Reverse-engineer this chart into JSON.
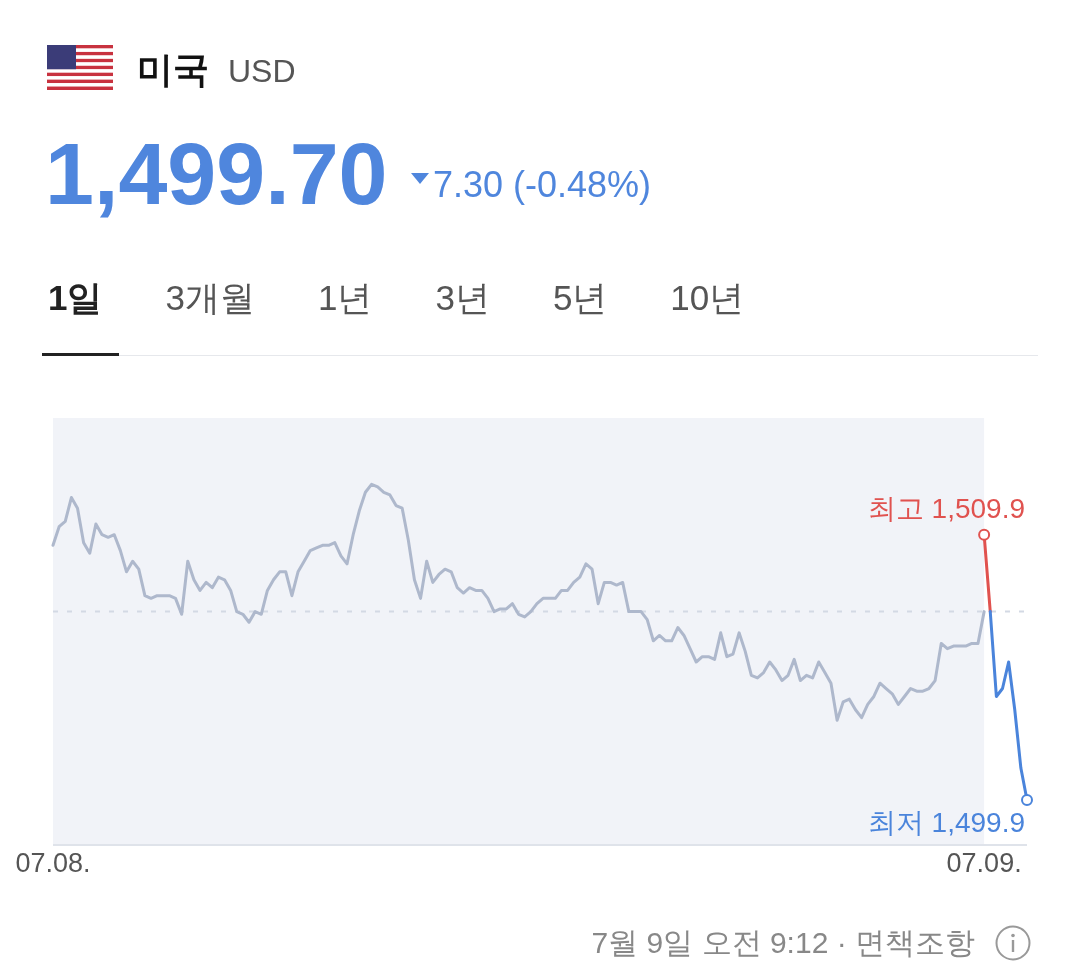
{
  "chart_data": {
    "type": "line",
    "title": "미국",
    "subtitle": "USD",
    "categories": [
      "07.08.",
      null,
      null,
      null,
      null,
      null,
      null,
      null,
      null,
      null,
      null,
      null,
      null,
      null,
      null,
      null,
      null,
      null,
      null,
      null,
      null,
      null,
      null,
      null,
      null,
      null,
      null,
      null,
      null,
      null,
      null,
      null,
      null,
      null,
      null,
      null,
      null,
      null,
      null,
      null,
      null,
      null,
      null,
      null,
      null,
      null,
      null,
      null,
      null,
      null,
      null,
      null,
      null,
      null,
      null,
      null,
      null,
      null,
      null,
      null,
      null,
      null,
      null,
      null,
      null,
      null,
      null,
      null,
      null,
      null,
      null,
      null,
      null,
      null,
      null,
      null,
      null,
      null,
      null,
      null,
      null,
      null,
      null,
      null,
      null,
      null,
      null,
      null,
      null,
      null,
      null,
      null,
      null,
      null,
      null,
      null,
      null,
      null,
      null,
      null,
      null,
      null,
      null,
      null,
      null,
      null,
      null,
      null,
      null,
      null,
      null,
      null,
      null,
      null,
      null,
      null,
      null,
      null,
      null,
      null,
      null,
      null,
      null,
      null,
      null,
      null,
      null,
      null,
      null,
      null,
      null,
      null,
      null,
      null,
      null,
      null,
      null,
      null,
      null,
      null,
      null,
      null,
      null,
      null,
      null,
      null,
      null,
      null,
      null,
      null,
      null,
      null,
      "07.09.",
      null,
      null,
      null,
      null,
      null,
      null,
      null
    ],
    "series": [
      {
        "color": "#aeb8cc",
        "values": [
          1509.5,
          1510.2,
          1510.4,
          1511.3,
          1510.9,
          1509.6,
          1509.2,
          1510.3,
          1509.9,
          1509.8,
          1509.9,
          1509.3,
          1508.5,
          1508.9,
          1508.6,
          1507.6,
          1507.5,
          1507.6,
          1507.6,
          1507.6,
          1507.5,
          1506.9,
          1508.9,
          1508.2,
          1507.8,
          1508.1,
          1507.9,
          1508.3,
          1508.2,
          1507.8,
          1507.0,
          1506.9,
          1506.6,
          1507.0,
          1506.9,
          1507.8,
          1508.2,
          1508.5,
          1508.5,
          1507.6,
          1508.5,
          1508.9,
          1509.3,
          1509.4,
          1509.5,
          1509.5,
          1509.6,
          1509.1,
          1508.8,
          1509.9,
          1510.8,
          1511.5,
          1511.8,
          1511.7,
          1511.5,
          1511.4,
          1511.0,
          1510.9,
          1509.7,
          1508.2,
          1507.5,
          1508.9,
          1508.1,
          1508.4,
          1508.6,
          1508.5,
          1507.9,
          1507.7,
          1507.9,
          1507.8,
          1507.8,
          1507.5,
          1507.0,
          1507.1,
          1507.1,
          1507.3,
          1506.9,
          1506.8,
          1507.0,
          1507.3,
          1507.5,
          1507.5,
          1507.5,
          1507.8,
          1507.8,
          1508.1,
          1508.3,
          1508.8,
          1508.6,
          1507.3,
          1508.1,
          1508.1,
          1508.0,
          1508.1,
          1507.0,
          1507.0,
          1507.0,
          1506.7,
          1505.9,
          1506.1,
          1505.9,
          1505.9,
          1506.4,
          1506.1,
          1505.6,
          1505.1,
          1505.3,
          1505.3,
          1505.2,
          1506.2,
          1505.3,
          1505.4,
          1506.2,
          1505.5,
          1504.6,
          1504.5,
          1504.7,
          1505.1,
          1504.8,
          1504.4,
          1504.6,
          1505.2,
          1504.4,
          1504.6,
          1504.5,
          1505.1,
          1504.7,
          1504.3,
          1502.9,
          1503.6,
          1503.7,
          1503.3,
          1503.0,
          1503.5,
          1503.8,
          1504.3,
          1504.1,
          1503.9,
          1503.5,
          1503.8,
          1504.1,
          1504.0,
          1504.0,
          1504.1,
          1504.4,
          1505.8,
          1505.6,
          1505.7,
          1505.7,
          1505.7,
          1505.8,
          1505.8,
          1507.0,
          null,
          null,
          null,
          null,
          null,
          null,
          null
        ]
      },
      {
        "color": "#e0524f",
        "values": [
          null,
          null,
          null,
          null,
          null,
          null,
          null,
          null,
          null,
          null,
          null,
          null,
          null,
          null,
          null,
          null,
          null,
          null,
          null,
          null,
          null,
          null,
          null,
          null,
          null,
          null,
          null,
          null,
          null,
          null,
          null,
          null,
          null,
          null,
          null,
          null,
          null,
          null,
          null,
          null,
          null,
          null,
          null,
          null,
          null,
          null,
          null,
          null,
          null,
          null,
          null,
          null,
          null,
          null,
          null,
          null,
          null,
          null,
          null,
          null,
          null,
          null,
          null,
          null,
          null,
          null,
          null,
          null,
          null,
          null,
          null,
          null,
          null,
          null,
          null,
          null,
          null,
          null,
          null,
          null,
          null,
          null,
          null,
          null,
          null,
          null,
          null,
          null,
          null,
          null,
          null,
          null,
          null,
          null,
          null,
          null,
          null,
          null,
          null,
          null,
          null,
          null,
          null,
          null,
          null,
          null,
          null,
          null,
          null,
          null,
          null,
          null,
          null,
          null,
          null,
          null,
          null,
          null,
          null,
          null,
          null,
          null,
          null,
          null,
          null,
          null,
          null,
          null,
          null,
          null,
          null,
          null,
          null,
          null,
          null,
          null,
          null,
          null,
          null,
          null,
          null,
          null,
          null,
          null,
          null,
          null,
          null,
          null,
          null,
          null,
          null,
          null,
          1509.9,
          1507.0,
          null,
          null,
          null,
          null,
          null,
          null
        ],
        "value_labels": [
          null,
          null,
          null,
          null,
          null,
          null,
          null,
          null,
          null,
          null,
          null,
          null,
          null,
          null,
          null,
          null,
          null,
          null,
          null,
          null,
          null,
          null,
          null,
          null,
          null,
          null,
          null,
          null,
          null,
          null,
          null,
          null,
          null,
          null,
          null,
          null,
          null,
          null,
          null,
          null,
          null,
          null,
          null,
          null,
          null,
          null,
          null,
          null,
          null,
          null,
          null,
          null,
          null,
          null,
          null,
          null,
          null,
          null,
          null,
          null,
          null,
          null,
          null,
          null,
          null,
          null,
          null,
          null,
          null,
          null,
          null,
          null,
          null,
          null,
          null,
          null,
          null,
          null,
          null,
          null,
          null,
          null,
          null,
          null,
          null,
          null,
          null,
          null,
          null,
          null,
          null,
          null,
          null,
          null,
          null,
          null,
          null,
          null,
          null,
          null,
          null,
          null,
          null,
          null,
          null,
          null,
          null,
          null,
          null,
          null,
          null,
          null,
          null,
          null,
          null,
          null,
          null,
          null,
          null,
          null,
          null,
          null,
          null,
          null,
          null,
          null,
          null,
          null,
          null,
          null,
          null,
          null,
          null,
          null,
          null,
          null,
          null,
          null,
          null,
          null,
          null,
          null,
          null,
          null,
          null,
          null,
          null,
          null,
          null,
          null,
          null,
          null,
          "최고 1,509.9",
          null,
          null,
          null,
          null,
          null,
          null,
          null
        ]
      },
      {
        "color": "#4a84db",
        "values": [
          null,
          null,
          null,
          null,
          null,
          null,
          null,
          null,
          null,
          null,
          null,
          null,
          null,
          null,
          null,
          null,
          null,
          null,
          null,
          null,
          null,
          null,
          null,
          null,
          null,
          null,
          null,
          null,
          null,
          null,
          null,
          null,
          null,
          null,
          null,
          null,
          null,
          null,
          null,
          null,
          null,
          null,
          null,
          null,
          null,
          null,
          null,
          null,
          null,
          null,
          null,
          null,
          null,
          null,
          null,
          null,
          null,
          null,
          null,
          null,
          null,
          null,
          null,
          null,
          null,
          null,
          null,
          null,
          null,
          null,
          null,
          null,
          null,
          null,
          null,
          null,
          null,
          null,
          null,
          null,
          null,
          null,
          null,
          null,
          null,
          null,
          null,
          null,
          null,
          null,
          null,
          null,
          null,
          null,
          null,
          null,
          null,
          null,
          null,
          null,
          null,
          null,
          null,
          null,
          null,
          null,
          null,
          null,
          null,
          null,
          null,
          null,
          null,
          null,
          null,
          null,
          null,
          null,
          null,
          null,
          null,
          null,
          null,
          null,
          null,
          null,
          null,
          null,
          null,
          null,
          null,
          null,
          null,
          null,
          null,
          null,
          null,
          null,
          null,
          null,
          null,
          null,
          null,
          null,
          null,
          null,
          null,
          null,
          null,
          null,
          null,
          null,
          null,
          1507.0,
          1503.8,
          1504.1,
          1505.1,
          1503.3,
          1501.1,
          1499.9
        ],
        "value_labels": [
          null,
          null,
          null,
          null,
          null,
          null,
          null,
          null,
          null,
          null,
          null,
          null,
          null,
          null,
          null,
          null,
          null,
          null,
          null,
          null,
          null,
          null,
          null,
          null,
          null,
          null,
          null,
          null,
          null,
          null,
          null,
          null,
          null,
          null,
          null,
          null,
          null,
          null,
          null,
          null,
          null,
          null,
          null,
          null,
          null,
          null,
          null,
          null,
          null,
          null,
          null,
          null,
          null,
          null,
          null,
          null,
          null,
          null,
          null,
          null,
          null,
          null,
          null,
          null,
          null,
          null,
          null,
          null,
          null,
          null,
          null,
          null,
          null,
          null,
          null,
          null,
          null,
          null,
          null,
          null,
          null,
          null,
          null,
          null,
          null,
          null,
          null,
          null,
          null,
          null,
          null,
          null,
          null,
          null,
          null,
          null,
          null,
          null,
          null,
          null,
          null,
          null,
          null,
          null,
          null,
          null,
          null,
          null,
          null,
          null,
          null,
          null,
          null,
          null,
          null,
          null,
          null,
          null,
          null,
          null,
          null,
          null,
          null,
          null,
          null,
          null,
          null,
          null,
          null,
          null,
          null,
          null,
          null,
          null,
          null,
          null,
          null,
          null,
          null,
          null,
          null,
          null,
          null,
          null,
          null,
          null,
          null,
          null,
          null,
          null,
          null,
          null,
          null,
          null,
          null,
          null,
          null,
          null,
          null,
          "최저 1,499.9"
        ]
      }
    ],
    "ylim": [
      1498.2,
      1514.3
    ],
    "tick_labels": "x",
    "ref_lines": [
      {
        "axis": "y",
        "value": 1507.0,
        "color": "#d3d9e4",
        "line_style": "dashed"
      }
    ],
    "bands": [
      {
        "axis": "x",
        "from": "07.08.",
        "to": "07.09.",
        "color": "#f1f3f8"
      }
    ],
    "annotations": [
      "1,499.70",
      "7.30 (-0.48%)",
      "1일",
      "3개월",
      "1년",
      "3년",
      "5년",
      "10년",
      "7월 9일 오전 9:12 · 면책조항"
    ]
  }
}
